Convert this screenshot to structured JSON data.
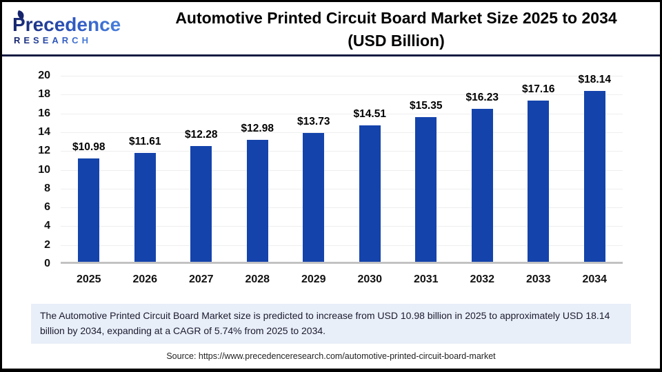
{
  "brand": {
    "name": "Precedence",
    "subname": "R E S E A R C H"
  },
  "header": {
    "title_line1": "Automotive Printed Circuit Board Market Size 2025 to 2034",
    "title_line2": "(USD Billion)"
  },
  "chart_data": {
    "type": "bar",
    "title": "Automotive Printed Circuit Board Market Size 2025 to 2034 (USD Billion)",
    "categories": [
      "2025",
      "2026",
      "2027",
      "2028",
      "2029",
      "2030",
      "2031",
      "2032",
      "2033",
      "2034"
    ],
    "values": [
      10.98,
      11.61,
      12.28,
      12.98,
      13.73,
      14.51,
      15.35,
      16.23,
      17.16,
      18.14
    ],
    "value_labels": [
      "$10.98",
      "$11.61",
      "$12.28",
      "$12.98",
      "$13.73",
      "$14.51",
      "$15.35",
      "$16.23",
      "$17.16",
      "$18.14"
    ],
    "xlabel": "",
    "ylabel": "",
    "ylim": [
      0,
      20
    ],
    "ytick_step": 2,
    "yticks": [
      0,
      2,
      4,
      6,
      8,
      10,
      12,
      14,
      16,
      18,
      20
    ],
    "grid": true,
    "legend_position": "none",
    "bar_color": "#1443ab",
    "gridline_color": "#eeeeee",
    "axis_color": "#c2c2c2"
  },
  "note": {
    "text": "The Automotive Printed Circuit Board Market size is predicted to increase from USD 10.98 billion in 2025 to approximately USD 18.14 billion by 2034, expanding at a CAGR of 5.74% from 2025 to 2034."
  },
  "source": {
    "text": "Source: https://www.precedenceresearch.com/automotive-printed-circuit-board-market"
  }
}
